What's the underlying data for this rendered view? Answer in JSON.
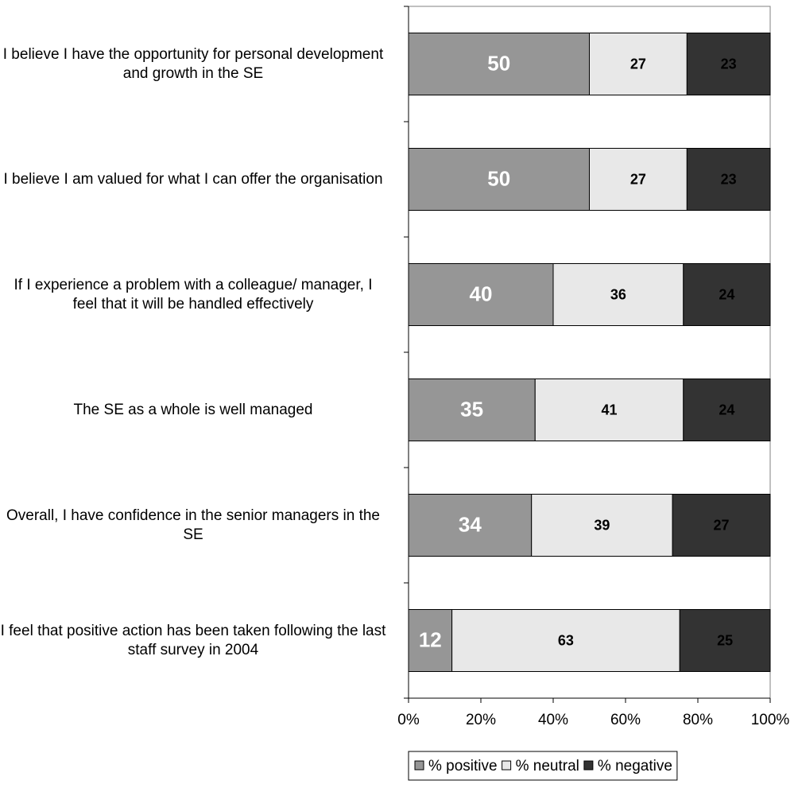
{
  "chart_data": {
    "type": "stacked-bar-horizontal",
    "categories": [
      "I believe I have the opportunity for personal development and growth in the SE",
      "I believe I am valued for what I can offer the organisation",
      "If I experience a problem with a colleague/ manager, I feel that it will be handled effectively",
      "The SE as a whole is well managed",
      "Overall, I have confidence in the senior managers in the SE",
      "I feel that positive action has been taken following the last staff survey in 2004"
    ],
    "series": [
      {
        "name": "% positive",
        "color": "#969696",
        "label_color": "#ffffff",
        "values": [
          50,
          50,
          40,
          35,
          34,
          12
        ]
      },
      {
        "name": "% neutral",
        "color": "#e8e8e8",
        "label_color": "#000000",
        "values": [
          27,
          27,
          36,
          41,
          39,
          63
        ]
      },
      {
        "name": "% negative",
        "color": "#333333",
        "label_color": "#000000",
        "values": [
          23,
          23,
          24,
          24,
          27,
          25
        ]
      }
    ],
    "xlim": [
      0,
      100
    ],
    "xticks": [
      {
        "value": 0,
        "label": "0%"
      },
      {
        "value": 20,
        "label": "20%"
      },
      {
        "value": 40,
        "label": "40%"
      },
      {
        "value": 60,
        "label": "60%"
      },
      {
        "value": 80,
        "label": "80%"
      },
      {
        "value": 100,
        "label": "100%"
      }
    ],
    "grid": false,
    "legend": "bottom"
  }
}
